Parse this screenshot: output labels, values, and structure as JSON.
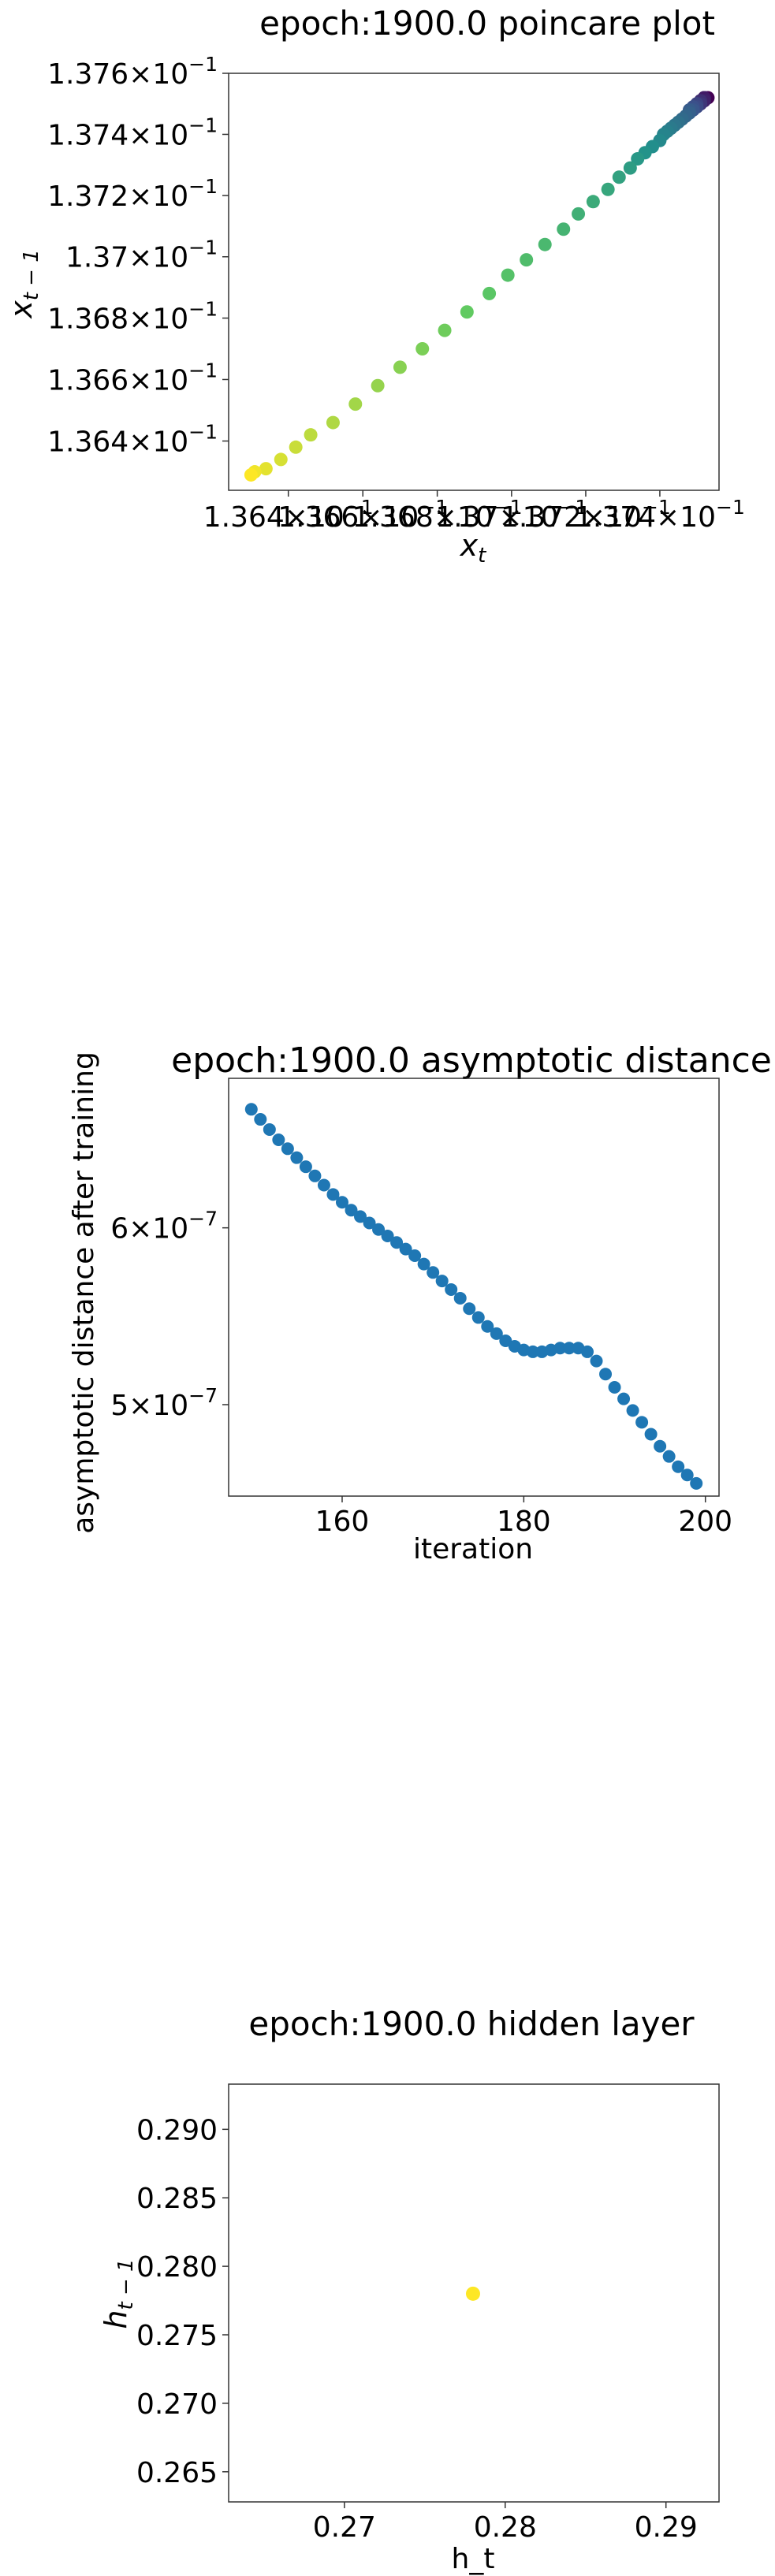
{
  "chart_data": [
    {
      "type": "scatter",
      "title": "epoch:1900.0 poincare plot",
      "xlabel_base": "x",
      "xlabel_sub": "t",
      "ylabel_base": "x",
      "ylabel_sub": "t − 1",
      "xscale": "log",
      "yscale": "log",
      "xlim": [
        0.13624,
        0.13756
      ],
      "ylim": [
        0.13624,
        0.1376
      ],
      "ytick_mantissas": [
        "1.364",
        "1.366",
        "1.368",
        "1.37",
        "1.372",
        "1.374",
        "1.376"
      ],
      "ytick_values": [
        0.1364,
        0.1366,
        0.1368,
        0.137,
        0.1372,
        0.1374,
        0.1376
      ],
      "xtick_mantissas": [
        "1.364",
        "1.366",
        "1.368",
        "1.37",
        "1.372",
        "1.374"
      ],
      "xtick_values": [
        0.1364,
        0.1366,
        0.1368,
        0.137,
        0.1372,
        0.1374
      ],
      "tick_exponent_base": "10",
      "tick_exponent_power": "−1",
      "colormap": "viridis",
      "x": [
        0.1363,
        0.13631,
        0.13634,
        0.13638,
        0.13642,
        0.13646,
        0.13652,
        0.13658,
        0.13664,
        0.1367,
        0.13676,
        0.13682,
        0.13688,
        0.13694,
        0.13699,
        0.13704,
        0.13709,
        0.13714,
        0.13718,
        0.13722,
        0.13726,
        0.13729,
        0.13732,
        0.13734,
        0.13736,
        0.13738,
        0.1374,
        0.13741,
        0.13742,
        0.13743,
        0.13744,
        0.13745,
        0.13746,
        0.13747,
        0.13748,
        0.13748,
        0.13749,
        0.13749,
        0.1375,
        0.1375,
        0.1375,
        0.13751,
        0.13751,
        0.13751,
        0.13752,
        0.13752,
        0.13752,
        0.13752,
        0.13752,
        0.13753
      ],
      "y": [
        0.13629,
        0.1363,
        0.13631,
        0.13634,
        0.13638,
        0.13642,
        0.13646,
        0.13652,
        0.13658,
        0.13664,
        0.1367,
        0.13676,
        0.13682,
        0.13688,
        0.13694,
        0.13699,
        0.13704,
        0.13709,
        0.13714,
        0.13718,
        0.13722,
        0.13726,
        0.13729,
        0.13732,
        0.13734,
        0.13736,
        0.13738,
        0.1374,
        0.13741,
        0.13742,
        0.13743,
        0.13744,
        0.13745,
        0.13746,
        0.13747,
        0.13748,
        0.13748,
        0.13749,
        0.13749,
        0.1375,
        0.1375,
        0.1375,
        0.13751,
        0.13751,
        0.13751,
        0.13752,
        0.13752,
        0.13752,
        0.13752,
        0.13752
      ]
    },
    {
      "type": "scatter",
      "title": "epoch:1900.0 asymptotic distance",
      "xlabel": "iteration",
      "ylabel": "asymptotic distance after training",
      "yscale": "log",
      "xlim": [
        147.5,
        201.5
      ],
      "ylim": [
        4.55e-07,
        7e-07
      ],
      "xticks": [
        160,
        180,
        200
      ],
      "ytick_mantissas": [
        "6",
        "5"
      ],
      "ytick_values": [
        6e-07,
        5e-07
      ],
      "tick_exponent_base": "10",
      "tick_exponent_power": "−7",
      "color": "#1f77b4",
      "x": [
        150,
        151,
        152,
        153,
        154,
        155,
        156,
        157,
        158,
        159,
        160,
        161,
        162,
        163,
        164,
        165,
        166,
        167,
        168,
        169,
        170,
        171,
        172,
        173,
        174,
        175,
        176,
        177,
        178,
        179,
        180,
        181,
        182,
        183,
        184,
        185,
        186,
        187,
        188,
        189,
        190,
        191,
        192,
        193,
        194,
        195,
        196,
        197,
        198,
        199
      ],
      "y": [
        6.78e-07,
        6.71e-07,
        6.64e-07,
        6.57e-07,
        6.51e-07,
        6.45e-07,
        6.39e-07,
        6.33e-07,
        6.27e-07,
        6.21e-07,
        6.16e-07,
        6.11e-07,
        6.07e-07,
        6.03e-07,
        5.99e-07,
        5.95e-07,
        5.91e-07,
        5.87e-07,
        5.83e-07,
        5.78e-07,
        5.73e-07,
        5.68e-07,
        5.63e-07,
        5.58e-07,
        5.52e-07,
        5.47e-07,
        5.42e-07,
        5.38e-07,
        5.34e-07,
        5.31e-07,
        5.29e-07,
        5.28e-07,
        5.28e-07,
        5.29e-07,
        5.3e-07,
        5.3e-07,
        5.3e-07,
        5.28e-07,
        5.23e-07,
        5.16e-07,
        5.09e-07,
        5.03e-07,
        4.97e-07,
        4.91e-07,
        4.85e-07,
        4.79e-07,
        4.74e-07,
        4.69e-07,
        4.65e-07,
        4.61e-07
      ]
    },
    {
      "type": "scatter",
      "title": "epoch:1900.0 hidden layer",
      "xlabel": "h_t",
      "ylabel_base": "h",
      "ylabel_sub": "t − 1",
      "xlim": [
        0.2628,
        0.2933
      ],
      "ylim": [
        0.2628,
        0.2933
      ],
      "xticks": [
        "0.27",
        "0.28",
        "0.29"
      ],
      "xtick_values": [
        0.27,
        0.28,
        0.29
      ],
      "yticks": [
        "0.265",
        "0.270",
        "0.275",
        "0.280",
        "0.285",
        "0.290"
      ],
      "ytick_values": [
        0.265,
        0.27,
        0.275,
        0.28,
        0.285,
        0.29
      ],
      "color": "#fde725",
      "x": [
        0.278
      ],
      "y": [
        0.278
      ]
    }
  ]
}
